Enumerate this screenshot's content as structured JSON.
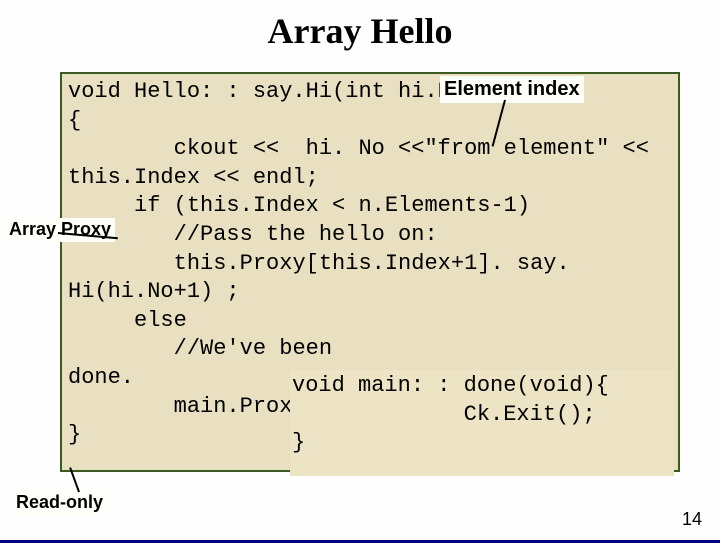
{
  "title": "Array Hello",
  "code_main": "void Hello: : say.Hi(int hi.No)\n{\n        ckout <<  hi. No <<\"from element\" << this.Index << endl;\n     if (this.Index < n.Elements-1)\n        //Pass the hello on:\n        this.Proxy[this.Index+1]. say. Hi(hi.No+1) ;\n     else\n        //We've been\ndone.\n        main.Proxy. do\n}",
  "code_inner": "void main: : done(void){\n             Ck.Exit();\n}",
  "label_element": "Element index",
  "label_array": "Array\nProxy",
  "label_readonly": "Read-only",
  "page_number": "14",
  "colors": {
    "code_bg": "#e8e0c0",
    "code_border": "#3a5a20",
    "label_bg": "#fffffa",
    "bottom_border": "#000080"
  }
}
